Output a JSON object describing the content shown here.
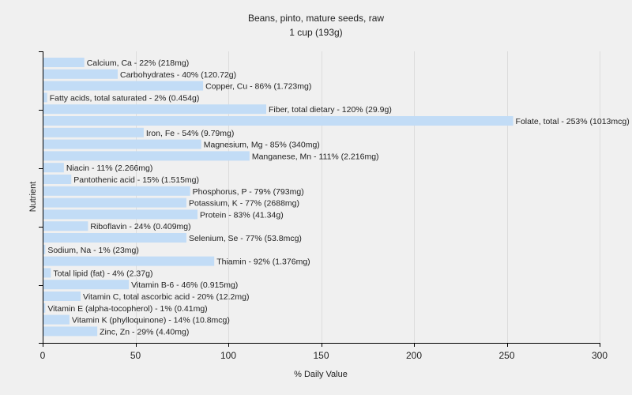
{
  "chart_data": {
    "type": "bar",
    "orientation": "horizontal",
    "title": "Beans, pinto, mature seeds, raw",
    "subtitle": "1 cup (193g)",
    "xlabel": "% Daily Value",
    "ylabel": "Nutrient",
    "xlim": [
      0,
      300
    ],
    "xticks": [
      0,
      50,
      100,
      150,
      200,
      250,
      300
    ],
    "grid": true,
    "bar_color": "#c2dcf6",
    "categories": [
      "Calcium, Ca",
      "Carbohydrates",
      "Copper, Cu",
      "Fatty acids, total saturated",
      "Fiber, total dietary",
      "Folate, total",
      "Iron, Fe",
      "Magnesium, Mg",
      "Manganese, Mn",
      "Niacin",
      "Pantothenic acid",
      "Phosphorus, P",
      "Potassium, K",
      "Protein",
      "Riboflavin",
      "Selenium, Se",
      "Sodium, Na",
      "Thiamin",
      "Total lipid (fat)",
      "Vitamin B-6",
      "Vitamin C, total ascorbic acid",
      "Vitamin E (alpha-tocopherol)",
      "Vitamin K (phylloquinone)",
      "Zinc, Zn"
    ],
    "values": [
      22,
      40,
      86,
      2,
      120,
      253,
      54,
      85,
      111,
      11,
      15,
      79,
      77,
      83,
      24,
      77,
      1,
      92,
      4,
      46,
      20,
      1,
      14,
      29
    ],
    "labels": [
      "Calcium, Ca - 22% (218mg)",
      "Carbohydrates - 40% (120.72g)",
      "Copper, Cu - 86% (1.723mg)",
      "Fatty acids, total saturated - 2% (0.454g)",
      "Fiber, total dietary - 120% (29.9g)",
      "Folate, total - 253% (1013mcg)",
      "Iron, Fe - 54% (9.79mg)",
      "Magnesium, Mg - 85% (340mg)",
      "Manganese, Mn - 111% (2.216mg)",
      "Niacin - 11% (2.266mg)",
      "Pantothenic acid - 15% (1.515mg)",
      "Phosphorus, P - 79% (793mg)",
      "Potassium, K - 77% (2688mg)",
      "Protein - 83% (41.34g)",
      "Riboflavin - 24% (0.409mg)",
      "Selenium, Se - 77% (53.8mcg)",
      "Sodium, Na - 1% (23mg)",
      "Thiamin - 92% (1.376mg)",
      "Total lipid (fat) - 4% (2.37g)",
      "Vitamin B-6 - 46% (0.915mg)",
      "Vitamin C, total ascorbic acid - 20% (12.2mg)",
      "Vitamin E (alpha-tocopherol) - 1% (0.41mg)",
      "Vitamin K (phylloquinone) - 14% (10.8mcg)",
      "Zinc, Zn - 29% (4.40mg)"
    ]
  }
}
